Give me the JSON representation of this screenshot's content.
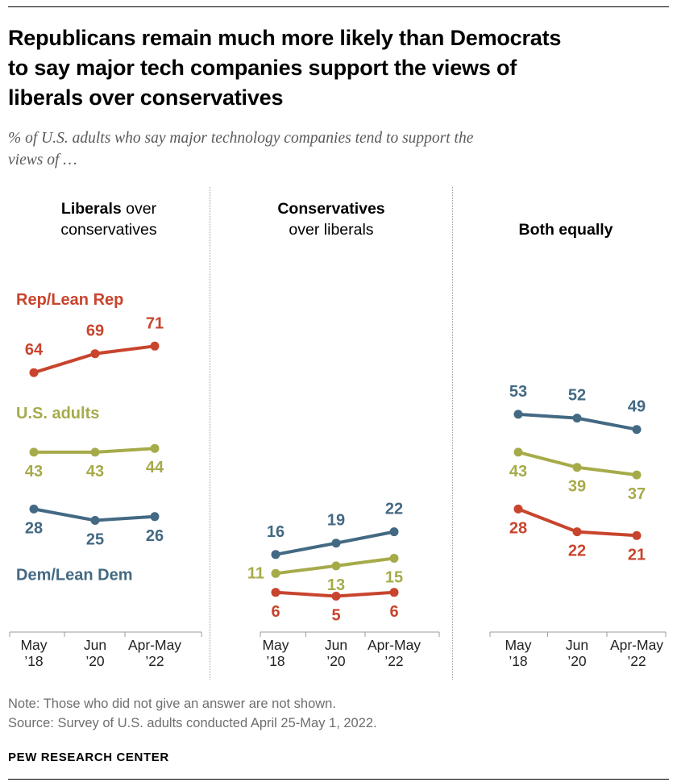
{
  "title": {
    "lines": [
      "Republicans remain much more likely than Democrats",
      "to say major tech companies support the views of",
      "liberals over conservatives"
    ]
  },
  "subtitle": {
    "lines": [
      "% of U.S. adults who say major technology companies tend to support the",
      "views of …"
    ]
  },
  "colors": {
    "rep": "#c9442d",
    "us_adults": "#a6ab4a",
    "dem": "#436983",
    "axis": "#9b9b9b",
    "tick_label": "#222222",
    "divider": "#9b9b9b",
    "subtitle": "#5a5a5a",
    "notes": "#6e6e6e",
    "rule": "#000000"
  },
  "x_axis": {
    "categories": [
      "May ’18",
      "Jun ’20",
      "Apr-May ’22"
    ],
    "tick_labels": [
      [
        "May",
        "’18"
      ],
      [
        "Jun",
        "’20"
      ],
      [
        "Apr-May",
        "’22"
      ]
    ]
  },
  "chart_data": [
    {
      "type": "line",
      "title_bold": "Liberals",
      "title_rest": "over conservatives",
      "categories": [
        "May ’18",
        "Jun ’20",
        "Apr-May ’22"
      ],
      "ylim": [
        0,
        80
      ],
      "grid": false,
      "legend": "inline-series-labels",
      "series": [
        {
          "name": "Rep/Lean Rep",
          "color_key": "rep",
          "values": [
            64,
            69,
            71
          ],
          "label_positions": [
            "above",
            "above",
            "above"
          ],
          "show_name": true,
          "name_dy": -84
        },
        {
          "name": "U.S. adults",
          "color_key": "us_adults",
          "values": [
            43,
            43,
            44
          ],
          "label_positions": [
            "below",
            "below",
            "below"
          ],
          "show_name": true,
          "name_dy": -42
        },
        {
          "name": "Dem/Lean Dem",
          "color_key": "dem",
          "values": [
            28,
            25,
            26
          ],
          "label_positions": [
            "below",
            "below",
            "below"
          ],
          "show_name": true,
          "name_dy": 88
        }
      ]
    },
    {
      "type": "line",
      "title_bold": "Conservatives",
      "title_rest": "over liberals",
      "categories": [
        "May ’18",
        "Jun ’20",
        "Apr-May ’22"
      ],
      "ylim": [
        0,
        80
      ],
      "grid": false,
      "legend": "none",
      "series": [
        {
          "name": "Dem/Lean Dem",
          "color_key": "dem",
          "values": [
            16,
            19,
            22
          ],
          "label_positions": [
            "above",
            "above",
            "above"
          ],
          "show_name": false,
          "name_dy": 0
        },
        {
          "name": "U.S. adults",
          "color_key": "us_adults",
          "values": [
            11,
            13,
            15
          ],
          "label_positions": [
            "left",
            "below",
            "below"
          ],
          "show_name": false,
          "name_dy": 0
        },
        {
          "name": "Rep/Lean Rep",
          "color_key": "rep",
          "values": [
            6,
            5,
            6
          ],
          "label_positions": [
            "below",
            "below",
            "below"
          ],
          "show_name": false,
          "name_dy": 0
        }
      ]
    },
    {
      "type": "line",
      "title_bold": "Both equally",
      "title_rest": "",
      "categories": [
        "May ’18",
        "Jun ’20",
        "Apr-May ’22"
      ],
      "ylim": [
        0,
        80
      ],
      "grid": false,
      "legend": "none",
      "series": [
        {
          "name": "Dem/Lean Dem",
          "color_key": "dem",
          "values": [
            53,
            52,
            49
          ],
          "label_positions": [
            "above",
            "above",
            "above"
          ],
          "show_name": false,
          "name_dy": 0
        },
        {
          "name": "U.S. adults",
          "color_key": "us_adults",
          "values": [
            43,
            39,
            37
          ],
          "label_positions": [
            "below",
            "below",
            "below"
          ],
          "show_name": false,
          "name_dy": 0
        },
        {
          "name": "Rep/Lean Rep",
          "color_key": "rep",
          "values": [
            28,
            22,
            21
          ],
          "label_positions": [
            "below",
            "below",
            "below"
          ],
          "show_name": false,
          "name_dy": 0
        }
      ]
    }
  ],
  "notes": {
    "note": "Note: Those who did not give an answer are not shown.",
    "source": "Source: Survey of U.S. adults conducted April 25-May 1, 2022.",
    "brand": "PEW RESEARCH CENTER"
  }
}
